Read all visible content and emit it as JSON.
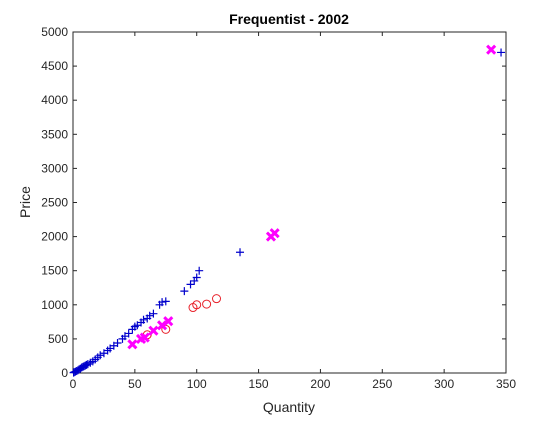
{
  "chart_data": {
    "type": "scatter",
    "title": "Frequentist - 2002",
    "xlabel": "Quantity",
    "ylabel": "Price",
    "xlim": [
      0,
      350
    ],
    "ylim": [
      0,
      5000
    ],
    "xticks": [
      0,
      50,
      100,
      150,
      200,
      250,
      300,
      350
    ],
    "yticks": [
      0,
      500,
      1000,
      1500,
      2000,
      2500,
      3000,
      3500,
      4000,
      4500,
      5000
    ],
    "grid": false,
    "legend": "none",
    "series": [
      {
        "marker": "plus",
        "color": "#0000cc",
        "points": [
          [
            0.5,
            5
          ],
          [
            1,
            12
          ],
          [
            2,
            20
          ],
          [
            3,
            30
          ],
          [
            4,
            40
          ],
          [
            5,
            55
          ],
          [
            6,
            65
          ],
          [
            7,
            80
          ],
          [
            8,
            90
          ],
          [
            9,
            100
          ],
          [
            10,
            110
          ],
          [
            11,
            120
          ],
          [
            12,
            130
          ],
          [
            14,
            150
          ],
          [
            16,
            170
          ],
          [
            18,
            200
          ],
          [
            20,
            230
          ],
          [
            22,
            260
          ],
          [
            25,
            290
          ],
          [
            28,
            330
          ],
          [
            30,
            360
          ],
          [
            33,
            400
          ],
          [
            36,
            440
          ],
          [
            40,
            500
          ],
          [
            42,
            540
          ],
          [
            45,
            580
          ],
          [
            48,
            640
          ],
          [
            50,
            680
          ],
          [
            52,
            700
          ],
          [
            55,
            740
          ],
          [
            57,
            780
          ],
          [
            60,
            800
          ],
          [
            62,
            840
          ],
          [
            65,
            870
          ],
          [
            70,
            1000
          ],
          [
            72,
            1040
          ],
          [
            75,
            1050
          ],
          [
            90,
            1200
          ],
          [
            95,
            1300
          ],
          [
            98,
            1350
          ],
          [
            100,
            1400
          ],
          [
            102,
            1500
          ],
          [
            135,
            1770
          ],
          [
            346,
            4700
          ]
        ]
      },
      {
        "marker": "circle",
        "color": "#e8212a",
        "points": [
          [
            60,
            560
          ],
          [
            75,
            640
          ],
          [
            97,
            960
          ],
          [
            100,
            1000
          ],
          [
            108,
            1010
          ],
          [
            116,
            1090
          ]
        ]
      },
      {
        "marker": "x",
        "color": "#ff00ff",
        "points": [
          [
            48,
            420
          ],
          [
            55,
            500
          ],
          [
            58,
            520
          ],
          [
            65,
            620
          ],
          [
            72,
            700
          ],
          [
            77,
            760
          ],
          [
            160,
            2000
          ],
          [
            163,
            2050
          ],
          [
            338,
            4740
          ]
        ]
      }
    ]
  }
}
